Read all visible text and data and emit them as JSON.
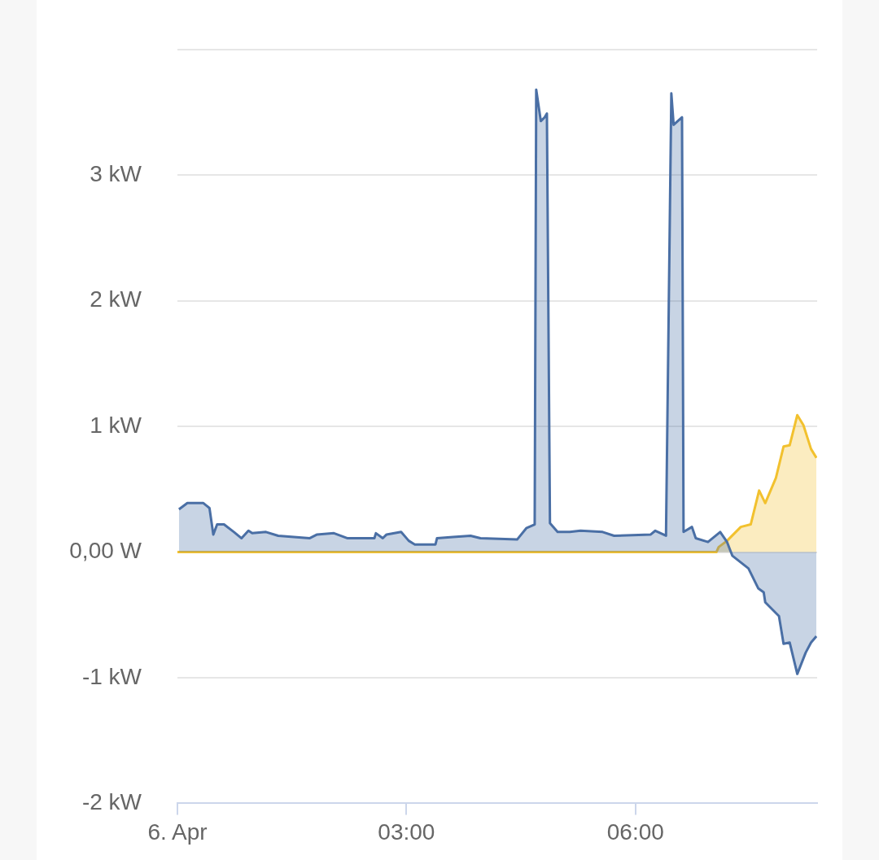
{
  "chart_data": {
    "type": "area",
    "x": [
      0.02,
      0.13,
      0.34,
      0.42,
      0.47,
      0.52,
      0.61,
      0.74,
      0.84,
      0.93,
      0.98,
      1.16,
      1.32,
      1.73,
      1.83,
      2.05,
      2.23,
      2.58,
      2.6,
      2.69,
      2.74,
      2.93,
      3.03,
      3.11,
      3.38,
      3.4,
      3.61,
      3.84,
      3.97,
      4.45,
      4.57,
      4.68,
      4.7,
      4.76,
      4.81,
      4.84,
      4.88,
      4.98,
      5.14,
      5.28,
      5.57,
      5.72,
      6.2,
      6.26,
      6.4,
      6.47,
      6.5,
      6.61,
      6.63,
      6.74,
      6.79,
      6.95,
      7.11,
      7.2,
      7.27,
      7.48,
      7.61,
      7.68,
      7.7,
      7.88,
      7.94,
      8.02,
      8.12,
      8.23,
      8.3,
      8.37
    ],
    "series": [
      {
        "color": "#4a6fa5",
        "values": [
          0.34,
          0.39,
          0.39,
          0.35,
          0.14,
          0.22,
          0.22,
          0.16,
          0.11,
          0.17,
          0.15,
          0.16,
          0.13,
          0.11,
          0.14,
          0.15,
          0.11,
          0.11,
          0.15,
          0.11,
          0.14,
          0.16,
          0.09,
          0.06,
          0.06,
          0.11,
          0.12,
          0.13,
          0.11,
          0.1,
          0.19,
          0.22,
          3.68,
          3.43,
          3.46,
          3.49,
          0.23,
          0.16,
          0.16,
          0.17,
          0.16,
          0.13,
          0.14,
          0.17,
          0.13,
          3.65,
          3.4,
          3.46,
          0.16,
          0.2,
          0.11,
          0.08,
          0.16,
          0.08,
          -0.03,
          -0.13,
          -0.29,
          -0.32,
          -0.4,
          -0.51,
          -0.73,
          -0.72,
          -0.97,
          -0.8,
          -0.72,
          -0.67
        ]
      },
      {
        "color": "#f2c12e",
        "x": [
          0,
          7.06,
          7.09,
          7.2,
          7.38,
          7.51,
          7.62,
          7.7,
          7.84,
          7.94,
          8.02,
          8.12,
          8.2,
          8.3,
          8.37
        ],
        "values": [
          0,
          0,
          0.04,
          0.09,
          0.2,
          0.22,
          0.49,
          0.39,
          0.59,
          0.84,
          0.85,
          1.09,
          1.01,
          0.82,
          0.75
        ]
      }
    ],
    "xlim": [
      0,
      8.38
    ],
    "xticks": [
      {
        "value": 0,
        "label": "6. Apr"
      },
      {
        "value": 3,
        "label": "03:00"
      },
      {
        "value": 6,
        "label": "06:00"
      }
    ],
    "ylim": [
      -2,
      4
    ],
    "yticks": [
      {
        "value": -2,
        "label": "-2 kW"
      },
      {
        "value": -1,
        "label": "-1 kW"
      },
      {
        "value": 0,
        "label": "0,00 W"
      },
      {
        "value": 1,
        "label": "1 kW"
      },
      {
        "value": 2,
        "label": "2 kW"
      },
      {
        "value": 3,
        "label": "3 kW"
      },
      {
        "value": 4,
        "label": null
      }
    ],
    "grid": "y",
    "legend": false
  }
}
